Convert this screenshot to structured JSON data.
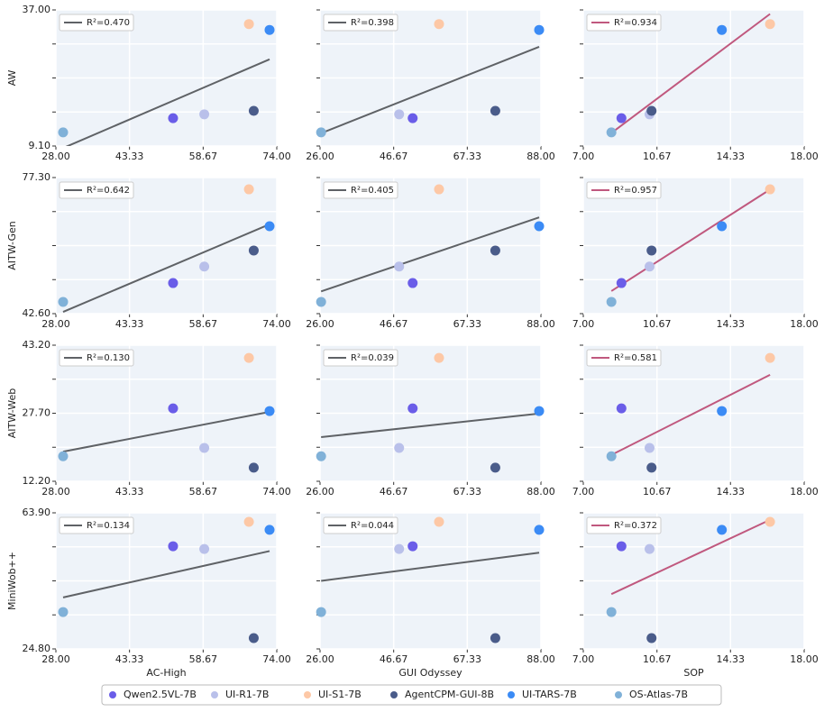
{
  "legend": [
    {
      "name": "Qwen2.5VL-7B",
      "color": "#6a5de8"
    },
    {
      "name": "UI-R1-7B",
      "color": "#b9c0ea"
    },
    {
      "name": "UI-S1-7B",
      "color": "#fdc8a6"
    },
    {
      "name": "AgentCPM-GUI-8B",
      "color": "#4a5c8a"
    },
    {
      "name": "UI-TARS-7B",
      "color": "#3b8bf5"
    },
    {
      "name": "OS-Atlas-7B",
      "color": "#80b1d8"
    }
  ],
  "chart_data": [
    {
      "type": "scatter",
      "ylabel": "AW",
      "annotation": "R²=0.470",
      "fit_color": "#5f6266",
      "x": [
        52.4,
        58.9,
        68.2,
        69.2,
        72.5,
        29.5
      ],
      "values": [
        14.8,
        15.6,
        34.1,
        16.3,
        32.9,
        11.9
      ],
      "xlim": [
        28,
        74
      ],
      "xticks": [
        {
          "value": 28,
          "label": "28.00"
        },
        {
          "value": 43.33,
          "label": "43.33"
        },
        {
          "value": 58.67,
          "label": "58.67"
        },
        {
          "value": 74,
          "label": "74.00"
        }
      ],
      "ylim": [
        9.1,
        37
      ],
      "yticks": [
        {
          "value": 9.1,
          "label": "9.10"
        },
        16.07,
        23.05,
        30.02,
        {
          "value": 37,
          "label": "37.00"
        }
      ]
    },
    {
      "type": "scatter",
      "annotation": "R²=0.398",
      "fit_color": "#5f6266",
      "x": [
        52.0,
        48.2,
        59.4,
        75.2,
        87.5,
        26.3
      ],
      "values": [
        14.8,
        15.6,
        34.1,
        16.3,
        32.9,
        11.9
      ],
      "xlim": [
        26,
        88
      ],
      "xticks": [
        {
          "value": 26,
          "label": "26.00"
        },
        {
          "value": 46.67,
          "label": "46.67"
        },
        {
          "value": 67.33,
          "label": "67.33"
        },
        {
          "value": 88,
          "label": "88.00"
        }
      ],
      "ylim": [
        9.1,
        37
      ],
      "yticks": [
        9.1,
        16.07,
        23.05,
        30.02,
        37
      ]
    },
    {
      "type": "scatter",
      "annotation": "R²=0.934",
      "fit_color": "#c0587e",
      "x": [
        8.9,
        10.3,
        16.3,
        10.4,
        13.9,
        8.4
      ],
      "values": [
        14.8,
        15.6,
        34.1,
        16.3,
        32.9,
        11.9
      ],
      "xlim": [
        7,
        18
      ],
      "xticks": [
        {
          "value": 7,
          "label": "7.00"
        },
        {
          "value": 10.67,
          "label": "10.67"
        },
        {
          "value": 14.33,
          "label": "14.33"
        },
        {
          "value": 18,
          "label": "18.00"
        }
      ],
      "ylim": [
        9.1,
        37
      ],
      "yticks": [
        9.1,
        16.07,
        23.05,
        30.02,
        37
      ]
    },
    {
      "type": "scatter",
      "ylabel": "AITW-Gen",
      "annotation": "R²=0.642",
      "fit_color": "#5f6266",
      "x": [
        52.4,
        58.9,
        68.2,
        69.2,
        72.5,
        29.5
      ],
      "values": [
        50.4,
        54.6,
        74.3,
        58.7,
        64.9,
        45.6
      ],
      "xlim": [
        28,
        74
      ],
      "xticks": [
        {
          "value": 28,
          "label": "28.00"
        },
        {
          "value": 43.33,
          "label": "43.33"
        },
        {
          "value": 58.67,
          "label": "58.67"
        },
        {
          "value": 74,
          "label": "74.00"
        }
      ],
      "ylim": [
        42.6,
        77.3
      ],
      "yticks": [
        {
          "value": 42.6,
          "label": "42.60"
        },
        51.27,
        59.95,
        68.62,
        {
          "value": 77.3,
          "label": "77.30"
        }
      ]
    },
    {
      "type": "scatter",
      "annotation": "R²=0.405",
      "fit_color": "#5f6266",
      "x": [
        52.0,
        48.2,
        59.4,
        75.2,
        87.5,
        26.3
      ],
      "values": [
        50.4,
        54.6,
        74.3,
        58.7,
        64.9,
        45.6
      ],
      "xlim": [
        26,
        88
      ],
      "xticks": [
        {
          "value": 26,
          "label": "26.00"
        },
        {
          "value": 46.67,
          "label": "46.67"
        },
        {
          "value": 67.33,
          "label": "67.33"
        },
        {
          "value": 88,
          "label": "88.00"
        }
      ],
      "ylim": [
        42.6,
        77.3
      ],
      "yticks": [
        42.6,
        51.27,
        59.95,
        68.62,
        77.3
      ]
    },
    {
      "type": "scatter",
      "annotation": "R²=0.957",
      "fit_color": "#c0587e",
      "x": [
        8.9,
        10.3,
        16.3,
        10.4,
        13.9,
        8.4
      ],
      "values": [
        50.4,
        54.6,
        74.3,
        58.7,
        64.9,
        45.6
      ],
      "xlim": [
        7,
        18
      ],
      "xticks": [
        {
          "value": 7,
          "label": "7.00"
        },
        {
          "value": 10.67,
          "label": "10.67"
        },
        {
          "value": 14.33,
          "label": "14.33"
        },
        {
          "value": 18,
          "label": "18.00"
        }
      ],
      "ylim": [
        42.6,
        77.3
      ],
      "yticks": [
        42.6,
        51.27,
        59.95,
        68.62,
        77.3
      ]
    },
    {
      "type": "scatter",
      "ylabel": "AITW-Web",
      "annotation": "R²=0.130",
      "fit_color": "#5f6266",
      "x": [
        52.4,
        58.9,
        68.2,
        69.2,
        72.5,
        29.5
      ],
      "values": [
        28.8,
        19.8,
        40.3,
        15.3,
        28.2,
        17.9
      ],
      "xlim": [
        28,
        74
      ],
      "xticks": [
        {
          "value": 28,
          "label": "28.00"
        },
        {
          "value": 43.33,
          "label": "43.33"
        },
        {
          "value": 58.67,
          "label": "58.67"
        },
        {
          "value": 74,
          "label": "74.00"
        }
      ],
      "ylim": [
        12.2,
        43.2
      ],
      "yticks": [
        {
          "value": 12.2,
          "label": "12.20"
        },
        19.95,
        {
          "value": 27.7,
          "label": "27.70"
        },
        35.45,
        {
          "value": 43.2,
          "label": "43.20"
        }
      ]
    },
    {
      "type": "scatter",
      "annotation": "R²=0.039",
      "fit_color": "#5f6266",
      "x": [
        52.0,
        48.2,
        59.4,
        75.2,
        87.5,
        26.3
      ],
      "values": [
        28.8,
        19.8,
        40.3,
        15.3,
        28.2,
        17.9
      ],
      "xlim": [
        26,
        88
      ],
      "xticks": [
        {
          "value": 26,
          "label": "26.00"
        },
        {
          "value": 46.67,
          "label": "46.67"
        },
        {
          "value": 67.33,
          "label": "67.33"
        },
        {
          "value": 88,
          "label": "88.00"
        }
      ],
      "ylim": [
        12.2,
        43.2
      ],
      "yticks": [
        12.2,
        19.95,
        27.7,
        35.45,
        43.2
      ]
    },
    {
      "type": "scatter",
      "annotation": "R²=0.581",
      "fit_color": "#c0587e",
      "x": [
        8.9,
        10.3,
        16.3,
        10.4,
        13.9,
        8.4
      ],
      "values": [
        28.8,
        19.8,
        40.3,
        15.3,
        28.2,
        17.9
      ],
      "xlim": [
        7,
        18
      ],
      "xticks": [
        {
          "value": 7,
          "label": "7.00"
        },
        {
          "value": 10.67,
          "label": "10.67"
        },
        {
          "value": 14.33,
          "label": "14.33"
        },
        {
          "value": 18,
          "label": "18.00"
        }
      ],
      "ylim": [
        12.2,
        43.2
      ],
      "yticks": [
        12.2,
        19.95,
        27.7,
        35.45,
        43.2
      ]
    },
    {
      "type": "scatter",
      "ylabel": "MiniWob++",
      "xlabel": "AC-High",
      "annotation": "R²=0.134",
      "fit_color": "#5f6266",
      "x": [
        52.4,
        58.9,
        68.2,
        69.2,
        72.5,
        29.5
      ],
      "values": [
        54.3,
        53.5,
        61.3,
        27.9,
        59.0,
        35.4
      ],
      "xlim": [
        28,
        74
      ],
      "xticks": [
        {
          "value": 28,
          "label": "28.00"
        },
        {
          "value": 43.33,
          "label": "43.33"
        },
        {
          "value": 58.67,
          "label": "58.67"
        },
        {
          "value": 74,
          "label": "74.00"
        }
      ],
      "ylim": [
        24.8,
        63.9
      ],
      "yticks": [
        {
          "value": 24.8,
          "label": "24.80"
        },
        34.58,
        44.35,
        54.12,
        {
          "value": 63.9,
          "label": "63.90"
        }
      ]
    },
    {
      "type": "scatter",
      "xlabel": "GUI Odyssey",
      "annotation": "R²=0.044",
      "fit_color": "#5f6266",
      "x": [
        52.0,
        48.2,
        59.4,
        75.2,
        87.5,
        26.3
      ],
      "values": [
        54.3,
        53.5,
        61.3,
        27.9,
        59.0,
        35.4
      ],
      "xlim": [
        26,
        88
      ],
      "xticks": [
        {
          "value": 26,
          "label": "26.00"
        },
        {
          "value": 46.67,
          "label": "46.67"
        },
        {
          "value": 67.33,
          "label": "67.33"
        },
        {
          "value": 88,
          "label": "88.00"
        }
      ],
      "ylim": [
        24.8,
        63.9
      ],
      "yticks": [
        24.8,
        34.58,
        44.35,
        54.12,
        63.9
      ]
    },
    {
      "type": "scatter",
      "xlabel": "SOP",
      "annotation": "R²=0.372",
      "fit_color": "#c0587e",
      "x": [
        8.9,
        10.3,
        16.3,
        10.4,
        13.9,
        8.4
      ],
      "values": [
        54.3,
        53.5,
        61.3,
        27.9,
        59.0,
        35.4
      ],
      "xlim": [
        7,
        18
      ],
      "xticks": [
        {
          "value": 7,
          "label": "7.00"
        },
        {
          "value": 10.67,
          "label": "10.67"
        },
        {
          "value": 14.33,
          "label": "14.33"
        },
        {
          "value": 18,
          "label": "18.00"
        }
      ],
      "ylim": [
        24.8,
        63.9
      ],
      "yticks": [
        24.8,
        34.58,
        44.35,
        54.12,
        63.9
      ]
    }
  ]
}
